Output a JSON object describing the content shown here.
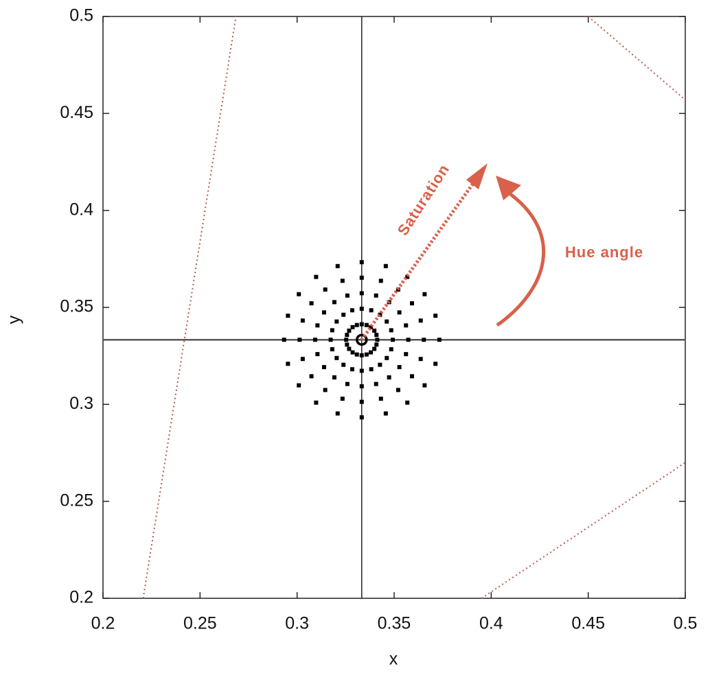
{
  "chart_data": {
    "type": "scatter",
    "xlabel": "x",
    "ylabel": "y",
    "xlim": [
      0.2,
      0.5
    ],
    "ylim": [
      0.2,
      0.5
    ],
    "xticks": [
      0.2,
      0.25,
      0.3,
      0.35,
      0.4,
      0.45,
      0.5
    ],
    "yticks": [
      0.2,
      0.25,
      0.3,
      0.35,
      0.4,
      0.45,
      0.5
    ],
    "grid": false,
    "annotations": [
      "Saturation",
      "Hue angle"
    ],
    "annotation_color": "#d9604a",
    "series": [
      {
        "mode": "markers",
        "marker": "square",
        "color": "#000000",
        "x": [
          0.3413,
          0.3493,
          0.3573,
          0.3653,
          0.3733,
          0.3409,
          0.3485,
          0.3561,
          0.3637,
          0.3713,
          0.3398,
          0.3462,
          0.3527,
          0.3592,
          0.3657,
          0.338,
          0.3427,
          0.3474,
          0.3521,
          0.3568,
          0.3358,
          0.3382,
          0.3407,
          0.3432,
          0.3457,
          0.3333,
          0.3333,
          0.3333,
          0.3333,
          0.3333,
          0.3308,
          0.3284,
          0.3259,
          0.3234,
          0.3209,
          0.3286,
          0.3239,
          0.3192,
          0.3145,
          0.3098,
          0.3268,
          0.3204,
          0.3139,
          0.3074,
          0.3009,
          0.3257,
          0.3181,
          0.3105,
          0.3029,
          0.2953,
          0.3253,
          0.3173,
          0.3093,
          0.3013,
          0.2933,
          0.3257,
          0.3181,
          0.3105,
          0.3029,
          0.2953,
          0.3268,
          0.3204,
          0.3139,
          0.3074,
          0.3009,
          0.3286,
          0.3239,
          0.3192,
          0.3145,
          0.3098,
          0.3308,
          0.3284,
          0.3259,
          0.3234,
          0.3209,
          0.3333,
          0.3333,
          0.3333,
          0.3333,
          0.3333,
          0.3358,
          0.3382,
          0.3407,
          0.3432,
          0.3457,
          0.338,
          0.3427,
          0.3474,
          0.3521,
          0.3568,
          0.3398,
          0.3462,
          0.3527,
          0.3592,
          0.3657,
          0.3409,
          0.3485,
          0.3561,
          0.3637,
          0.3713
        ],
        "y": [
          0.3333,
          0.3333,
          0.3333,
          0.3333,
          0.3333,
          0.3358,
          0.3382,
          0.3407,
          0.3432,
          0.3457,
          0.338,
          0.3427,
          0.3474,
          0.3521,
          0.3568,
          0.3398,
          0.3462,
          0.3527,
          0.3592,
          0.3657,
          0.3409,
          0.3485,
          0.3561,
          0.3637,
          0.3713,
          0.3413,
          0.3493,
          0.3573,
          0.3653,
          0.3733,
          0.3409,
          0.3485,
          0.3561,
          0.3637,
          0.3713,
          0.3398,
          0.3462,
          0.3527,
          0.3592,
          0.3657,
          0.338,
          0.3427,
          0.3474,
          0.3521,
          0.3568,
          0.3358,
          0.3382,
          0.3407,
          0.3432,
          0.3457,
          0.3333,
          0.3333,
          0.3333,
          0.3333,
          0.3333,
          0.3308,
          0.3284,
          0.3259,
          0.3234,
          0.3209,
          0.3286,
          0.3239,
          0.3192,
          0.3145,
          0.3098,
          0.3268,
          0.3204,
          0.3139,
          0.3074,
          0.3009,
          0.3257,
          0.3181,
          0.3105,
          0.3029,
          0.2953,
          0.3253,
          0.3173,
          0.3093,
          0.3013,
          0.2933,
          0.3257,
          0.3181,
          0.3105,
          0.3029,
          0.2953,
          0.3268,
          0.3204,
          0.3139,
          0.3074,
          0.3009,
          0.3286,
          0.3239,
          0.3192,
          0.3145,
          0.3098,
          0.3308,
          0.3284,
          0.3259,
          0.3234,
          0.3209
        ]
      },
      {
        "mode": "markers",
        "marker": "circle",
        "color": "#000000",
        "x": [
          0.3333
        ],
        "y": [
          0.3333
        ]
      },
      {
        "mode": "line",
        "style": "dotted",
        "color": "#b5574f",
        "x": [
          0.2207,
          0.2685
        ],
        "y": [
          0.2,
          0.5
        ]
      },
      {
        "mode": "line",
        "style": "dotted",
        "color": "#b5574f",
        "x": [
          0.45,
          0.5
        ],
        "y": [
          0.5,
          0.457
        ]
      },
      {
        "mode": "line",
        "style": "dotted",
        "color": "#b5574f",
        "x": [
          0.395,
          0.5
        ],
        "y": [
          0.2,
          0.27
        ]
      }
    ]
  }
}
